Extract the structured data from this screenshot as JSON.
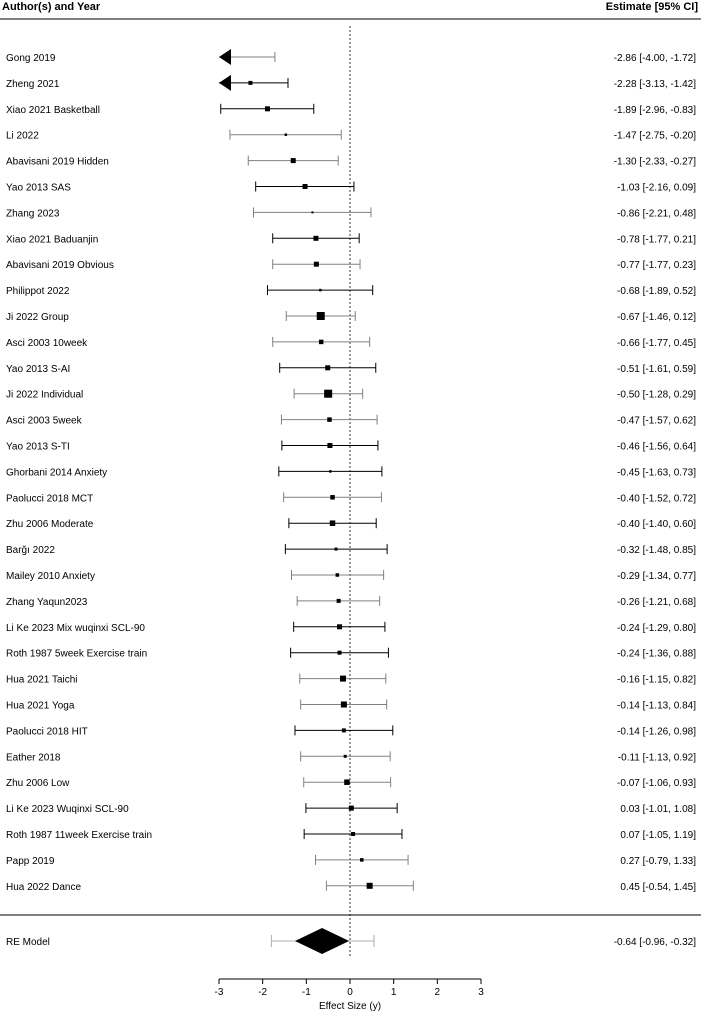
{
  "chart_data": {
    "type": "forest",
    "header": {
      "left": "Author(s) and Year",
      "right": "Estimate [95% CI]"
    },
    "xlabel": "Effect Size (y)",
    "xlim": [
      -3,
      3
    ],
    "ticks": [
      -3,
      -2,
      -1,
      0,
      1,
      2,
      3
    ],
    "reference_line": 0,
    "studies": [
      {
        "label": "Gong 2019",
        "estimate": -2.86,
        "lower": -4.0,
        "upper": -1.72,
        "ci_text": "-2.86 [-4.00, -1.72]",
        "weight": 5,
        "color": "#808080",
        "clipped_left": true
      },
      {
        "label": "Zheng 2021",
        "estimate": -2.28,
        "lower": -3.13,
        "upper": -1.42,
        "ci_text": "-2.28 [-3.13, -1.42]",
        "weight": 4,
        "color": "#000000",
        "clipped_left": true
      },
      {
        "label": "Xiao 2021 Basketball",
        "estimate": -1.89,
        "lower": -2.96,
        "upper": -0.83,
        "ci_text": "-1.89 [-2.96, -0.83]",
        "weight": 5,
        "color": "#000000"
      },
      {
        "label": "Li 2022",
        "estimate": -1.47,
        "lower": -2.75,
        "upper": -0.2,
        "ci_text": "-1.47 [-2.75, -0.20]",
        "weight": 2.5,
        "color": "#808080"
      },
      {
        "label": "Abavisani 2019 Hidden",
        "estimate": -1.3,
        "lower": -2.33,
        "upper": -0.27,
        "ci_text": "-1.30 [-2.33, -0.27]",
        "weight": 5,
        "color": "#808080"
      },
      {
        "label": "Yao 2013 SAS",
        "estimate": -1.03,
        "lower": -2.16,
        "upper": 0.09,
        "ci_text": "-1.03 [-2.16,  0.09]",
        "weight": 5,
        "color": "#000000"
      },
      {
        "label": "Zhang 2023",
        "estimate": -0.86,
        "lower": -2.21,
        "upper": 0.48,
        "ci_text": "-0.86 [-2.21,  0.48]",
        "weight": 2,
        "color": "#808080"
      },
      {
        "label": "Xiao 2021 Baduanjin",
        "estimate": -0.78,
        "lower": -1.77,
        "upper": 0.21,
        "ci_text": "-0.78 [-1.77,  0.21]",
        "weight": 5,
        "color": "#000000"
      },
      {
        "label": "Abavisani 2019 Obvious",
        "estimate": -0.77,
        "lower": -1.77,
        "upper": 0.23,
        "ci_text": "-0.77 [-1.77,  0.23]",
        "weight": 5,
        "color": "#808080"
      },
      {
        "label": "Philippot 2022",
        "estimate": -0.68,
        "lower": -1.89,
        "upper": 0.52,
        "ci_text": "-0.68 [-1.89,  0.52]",
        "weight": 2.5,
        "color": "#000000"
      },
      {
        "label": "Ji 2022 Group",
        "estimate": -0.67,
        "lower": -1.46,
        "upper": 0.12,
        "ci_text": "-0.67 [-1.46,  0.12]",
        "weight": 8,
        "color": "#808080"
      },
      {
        "label": "Asci 2003 10week",
        "estimate": -0.66,
        "lower": -1.77,
        "upper": 0.45,
        "ci_text": "-0.66 [-1.77,  0.45]",
        "weight": 4.5,
        "color": "#808080"
      },
      {
        "label": "Yao 2013 S-AI",
        "estimate": -0.51,
        "lower": -1.61,
        "upper": 0.59,
        "ci_text": "-0.51 [-1.61,  0.59]",
        "weight": 5,
        "color": "#000000"
      },
      {
        "label": "Ji 2022 Individual",
        "estimate": -0.5,
        "lower": -1.28,
        "upper": 0.29,
        "ci_text": "-0.50 [-1.28,  0.29]",
        "weight": 8,
        "color": "#808080"
      },
      {
        "label": "Asci 2003 5week",
        "estimate": -0.47,
        "lower": -1.57,
        "upper": 0.62,
        "ci_text": "-0.47 [-1.57,  0.62]",
        "weight": 4.5,
        "color": "#808080"
      },
      {
        "label": "Yao 2013 S-TI",
        "estimate": -0.46,
        "lower": -1.56,
        "upper": 0.64,
        "ci_text": "-0.46 [-1.56,  0.64]",
        "weight": 5,
        "color": "#000000"
      },
      {
        "label": "Ghorbani 2014 Anxiety",
        "estimate": -0.45,
        "lower": -1.63,
        "upper": 0.73,
        "ci_text": "-0.45 [-1.63,  0.73]",
        "weight": 2.5,
        "color": "#000000"
      },
      {
        "label": "Paolucci 2018 MCT",
        "estimate": -0.4,
        "lower": -1.52,
        "upper": 0.72,
        "ci_text": "-0.40 [-1.52,  0.72]",
        "weight": 4.5,
        "color": "#808080"
      },
      {
        "label": "Zhu 2006 Moderate",
        "estimate": -0.4,
        "lower": -1.4,
        "upper": 0.6,
        "ci_text": "-0.40 [-1.40,  0.60]",
        "weight": 5.5,
        "color": "#000000"
      },
      {
        "label": "Barğı 2022",
        "estimate": -0.32,
        "lower": -1.48,
        "upper": 0.85,
        "ci_text": "-0.32 [-1.48,  0.85]",
        "weight": 3,
        "color": "#000000"
      },
      {
        "label": "Mailey 2010 Anxiety",
        "estimate": -0.29,
        "lower": -1.34,
        "upper": 0.77,
        "ci_text": "-0.29 [-1.34,  0.77]",
        "weight": 3.5,
        "color": "#808080"
      },
      {
        "label": "Zhang Yaqun2023",
        "estimate": -0.26,
        "lower": -1.21,
        "upper": 0.68,
        "ci_text": "-0.26 [-1.21,  0.68]",
        "weight": 4,
        "color": "#808080"
      },
      {
        "label": "Li Ke 2023 Mix wuqinxi SCL-90",
        "estimate": -0.24,
        "lower": -1.29,
        "upper": 0.8,
        "ci_text": "-0.24 [-1.29,  0.80]",
        "weight": 5,
        "color": "#000000"
      },
      {
        "label": "Roth 1987 5week Exercise train",
        "estimate": -0.24,
        "lower": -1.36,
        "upper": 0.88,
        "ci_text": "-0.24 [-1.36,  0.88]",
        "weight": 4,
        "color": "#000000"
      },
      {
        "label": "Hua 2021 Taichi",
        "estimate": -0.16,
        "lower": -1.15,
        "upper": 0.82,
        "ci_text": "-0.16 [-1.15,  0.82]",
        "weight": 6,
        "color": "#808080"
      },
      {
        "label": "Hua 2021 Yoga",
        "estimate": -0.14,
        "lower": -1.13,
        "upper": 0.84,
        "ci_text": "-0.14 [-1.13,  0.84]",
        "weight": 6,
        "color": "#808080"
      },
      {
        "label": "Paolucci 2018 HIT",
        "estimate": -0.14,
        "lower": -1.26,
        "upper": 0.98,
        "ci_text": "-0.14 [-1.26,  0.98]",
        "weight": 4,
        "color": "#000000"
      },
      {
        "label": "Eather 2018",
        "estimate": -0.11,
        "lower": -1.13,
        "upper": 0.92,
        "ci_text": "-0.11 [-1.13,  0.92]",
        "weight": 3,
        "color": "#808080"
      },
      {
        "label": "Zhu 2006 Low",
        "estimate": -0.07,
        "lower": -1.06,
        "upper": 0.93,
        "ci_text": "-0.07 [-1.06,  0.93]",
        "weight": 5.5,
        "color": "#808080"
      },
      {
        "label": "Li Ke 2023 Wuqinxi SCL-90",
        "estimate": 0.03,
        "lower": -1.01,
        "upper": 1.08,
        "ci_text": " 0.03 [-1.01,  1.08]",
        "weight": 5,
        "color": "#000000"
      },
      {
        "label": "Roth 1987 11week Exercise train",
        "estimate": 0.07,
        "lower": -1.05,
        "upper": 1.19,
        "ci_text": " 0.07 [-1.05,  1.19]",
        "weight": 4,
        "color": "#000000"
      },
      {
        "label": "Papp 2019",
        "estimate": 0.27,
        "lower": -0.79,
        "upper": 1.33,
        "ci_text": " 0.27 [-0.79,  1.33]",
        "weight": 3.5,
        "color": "#808080"
      },
      {
        "label": "Hua 2022 Dance",
        "estimate": 0.45,
        "lower": -0.54,
        "upper": 1.45,
        "ci_text": " 0.45 [-0.54,  1.45]",
        "weight": 6,
        "color": "#808080"
      }
    ],
    "summary": {
      "label": "RE Model",
      "estimate": -0.64,
      "lower": -0.96,
      "upper": -0.32,
      "pi_lower": -1.8,
      "pi_upper": 0.55,
      "ci_text": "-0.64 [-0.96, -0.32]"
    }
  }
}
